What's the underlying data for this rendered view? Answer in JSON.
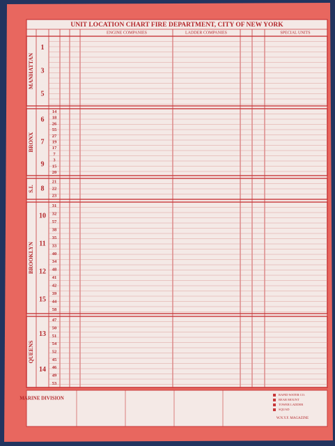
{
  "header": {
    "title": "UNIT LOCATION CHART  FIRE DEPARTMENT, CITY OF NEW YORK"
  },
  "columns": [
    "ENGINE COMPANIES",
    "LADDER COMPANIES",
    "SPECIAL UNITS"
  ],
  "boroughs": [
    {
      "name": "MANHATTAN",
      "divisions": [
        "1",
        "3",
        "5"
      ],
      "battalions": []
    },
    {
      "name": "BRONX",
      "divisions": [
        "6",
        "7",
        "9"
      ],
      "battalions": [
        "14",
        "18",
        "26",
        "55",
        "27",
        "19",
        "17",
        "7",
        "3",
        "15",
        "20"
      ]
    },
    {
      "name": "S.I.",
      "divisions": [
        "8"
      ],
      "battalions": [
        "21",
        "22",
        "23"
      ]
    },
    {
      "name": "BROOKLYN",
      "divisions": [
        "10",
        "11",
        "12",
        "15"
      ],
      "battalions": [
        "31",
        "32",
        "57",
        "38",
        "35",
        "33",
        "40",
        "34",
        "48",
        "41",
        "42",
        "39",
        "44",
        "58"
      ]
    },
    {
      "name": "QUEENS",
      "divisions": [
        "13",
        "14"
      ],
      "battalions": [
        "47",
        "50",
        "51",
        "54",
        "52",
        "45",
        "46",
        "49",
        "53"
      ]
    }
  ],
  "footer": {
    "marine": "MARINE DIVISION",
    "magazine": "W.N.Y.F. MAGAZINE",
    "legend": [
      "RAPID WATER CO.",
      "REAR MOUNT",
      "TOWER LADDER",
      "SQUAD"
    ]
  }
}
